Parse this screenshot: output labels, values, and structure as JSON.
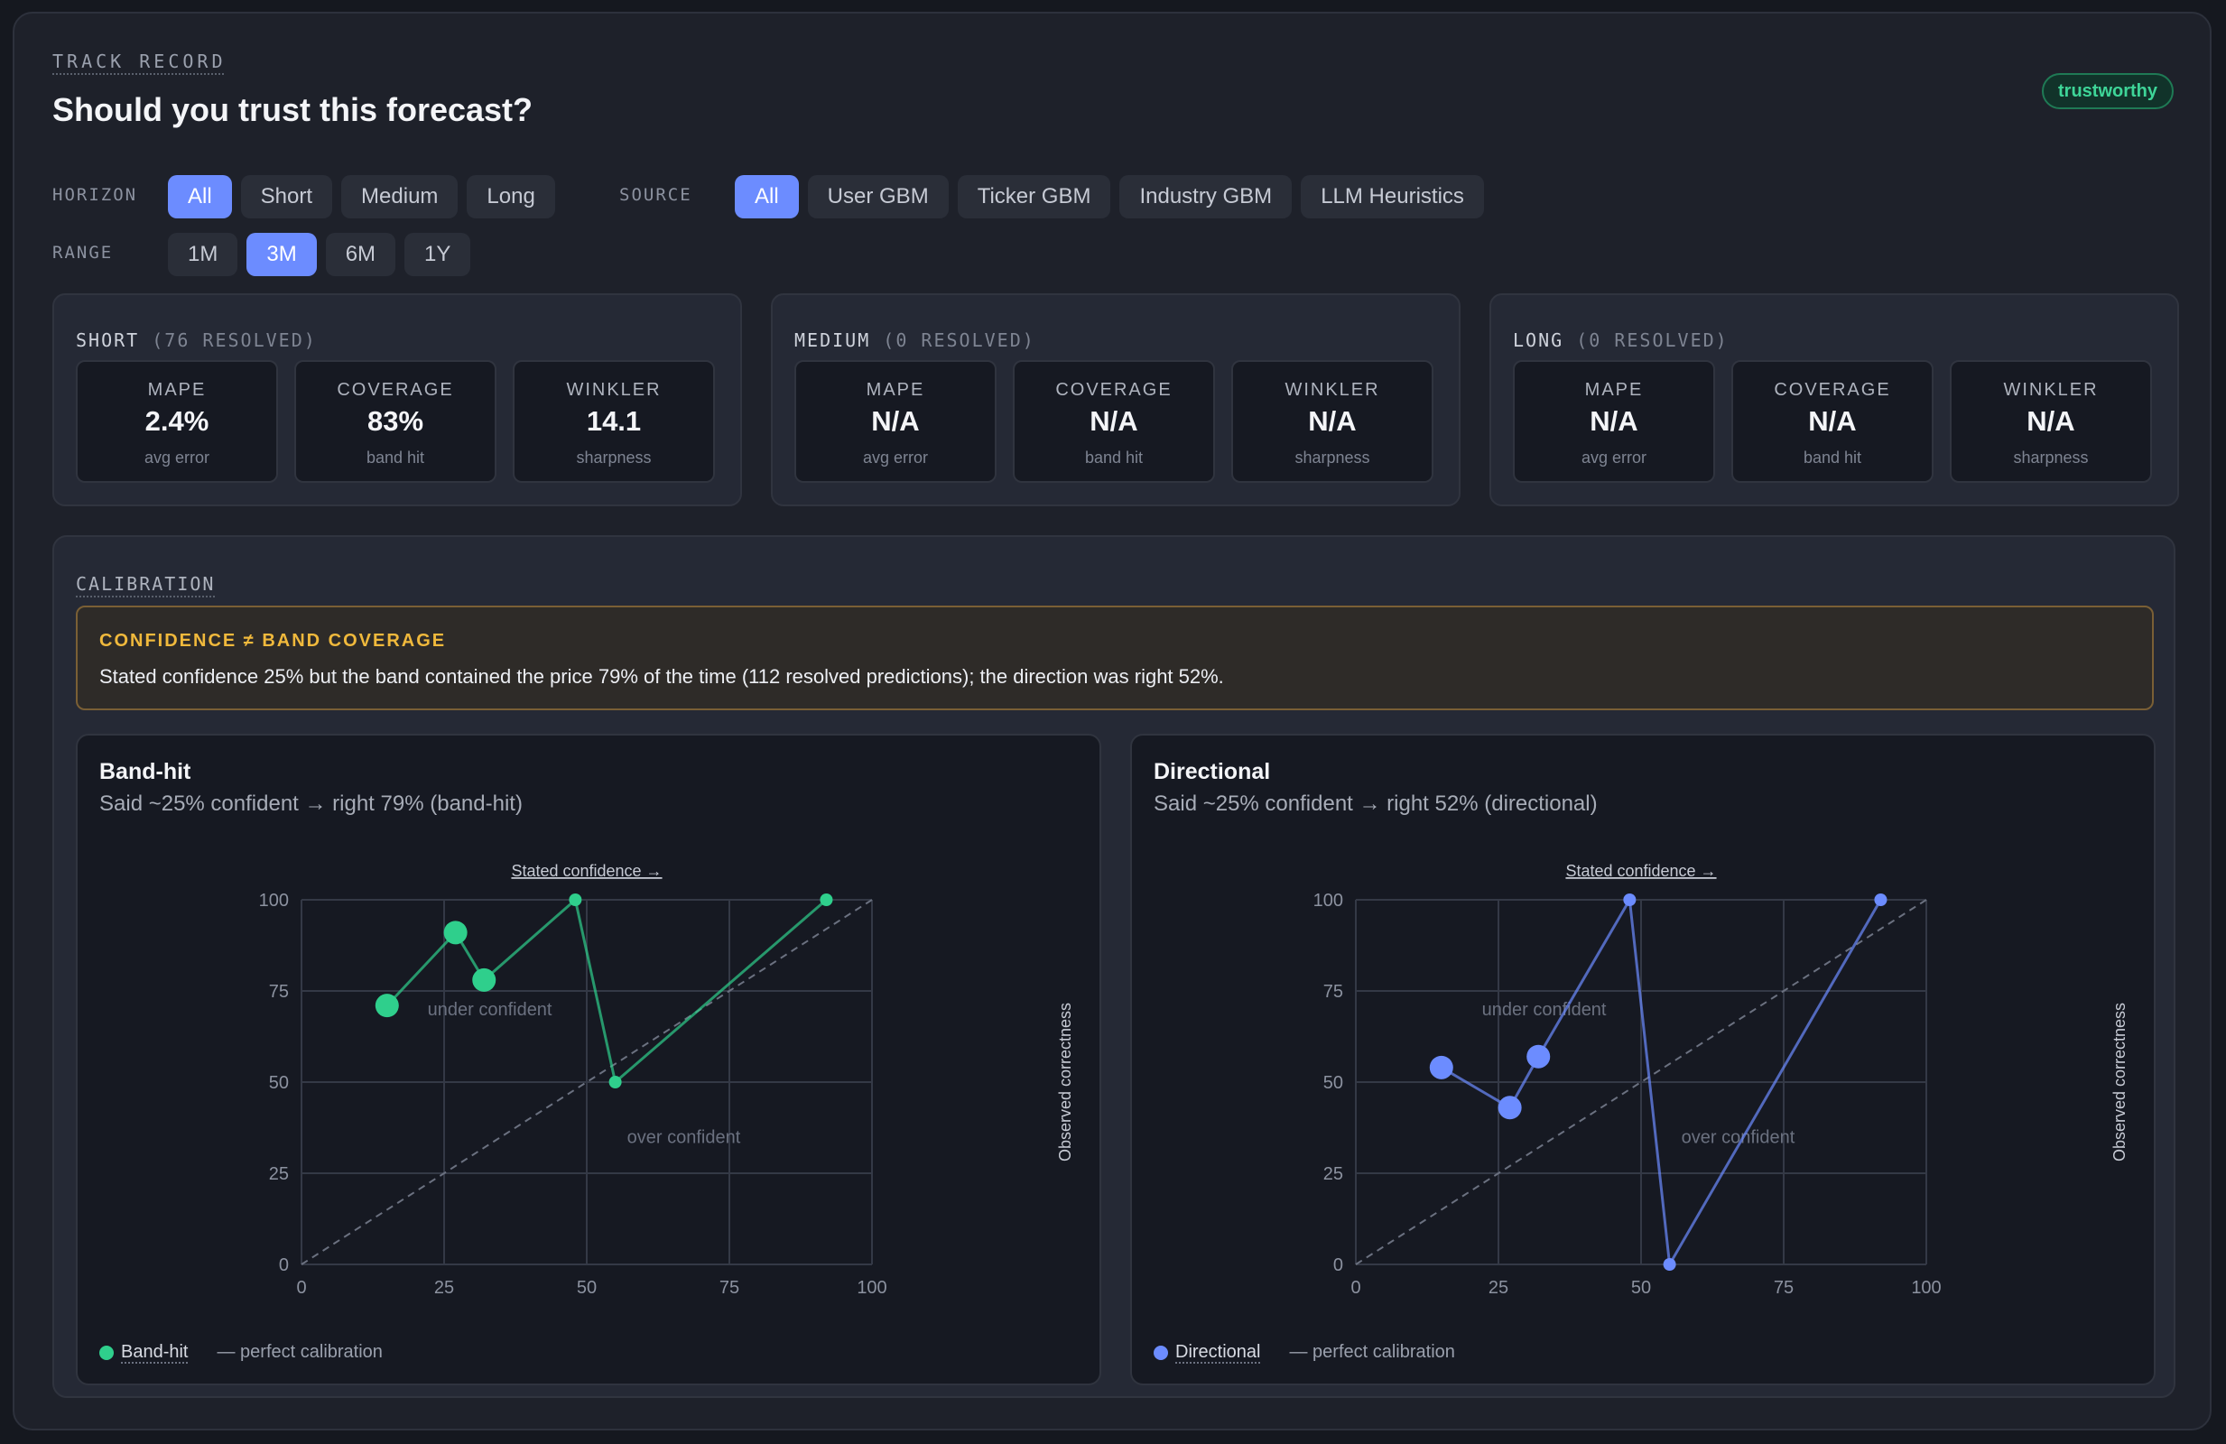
{
  "header": {
    "eyebrow": "TRACK RECORD",
    "title": "Should you trust this forecast?",
    "badge": "trustworthy"
  },
  "filters": {
    "horizon": {
      "label": "HORIZON",
      "options": [
        "All",
        "Short",
        "Medium",
        "Long"
      ],
      "selected": "All"
    },
    "source": {
      "label": "SOURCE",
      "options": [
        "All",
        "User GBM",
        "Ticker GBM",
        "Industry GBM",
        "LLM Heuristics"
      ],
      "selected": "All"
    },
    "range": {
      "label": "RANGE",
      "options": [
        "1M",
        "3M",
        "6M",
        "1Y"
      ],
      "selected": "3M"
    }
  },
  "horizons": [
    {
      "name": "SHORT",
      "resolved": "(76 RESOLVED)",
      "metrics": [
        {
          "label": "MAPE",
          "value": "2.4%",
          "note": "avg error"
        },
        {
          "label": "COVERAGE",
          "value": "83%",
          "note": "band hit"
        },
        {
          "label": "WINKLER",
          "value": "14.1",
          "note": "sharpness"
        }
      ]
    },
    {
      "name": "MEDIUM",
      "resolved": "(0 RESOLVED)",
      "metrics": [
        {
          "label": "MAPE",
          "value": "N/A",
          "note": "avg error"
        },
        {
          "label": "COVERAGE",
          "value": "N/A",
          "note": "band hit"
        },
        {
          "label": "WINKLER",
          "value": "N/A",
          "note": "sharpness"
        }
      ]
    },
    {
      "name": "LONG",
      "resolved": "(0 RESOLVED)",
      "metrics": [
        {
          "label": "MAPE",
          "value": "N/A",
          "note": "avg error"
        },
        {
          "label": "COVERAGE",
          "value": "N/A",
          "note": "band hit"
        },
        {
          "label": "WINKLER",
          "value": "N/A",
          "note": "sharpness"
        }
      ]
    }
  ],
  "calibration": {
    "title": "CALIBRATION",
    "warning": {
      "title": "CONFIDENCE ≠ BAND COVERAGE",
      "text": "Stated confidence 25% but the band contained the price 79% of the time (112 resolved predictions); the direction was right 52%."
    }
  },
  "chart_data": [
    {
      "type": "scatter",
      "title": "Band-hit",
      "subtitle": "Said ~25% confident → right 79% (band-hit)",
      "xlabel": "Stated confidence →",
      "ylabel": "Observed correctness",
      "xlim": [
        0,
        100
      ],
      "ylim": [
        0,
        100
      ],
      "ticks": [
        "0",
        "25",
        "50",
        "75",
        "100"
      ],
      "grid": true,
      "color": "#2fcf8c",
      "annotations": [
        "under confident",
        "over confident"
      ],
      "series": [
        {
          "name": "Band-hit",
          "points": [
            {
              "x": 15,
              "y": 71,
              "size": "large"
            },
            {
              "x": 27,
              "y": 91,
              "size": "large"
            },
            {
              "x": 32,
              "y": 78,
              "size": "large"
            },
            {
              "x": 48,
              "y": 100,
              "size": "small"
            },
            {
              "x": 55,
              "y": 50,
              "size": "small"
            },
            {
              "x": 92,
              "y": 100,
              "size": "small"
            }
          ]
        }
      ],
      "reference": "— perfect calibration",
      "legend": "bottom-left"
    },
    {
      "type": "scatter",
      "title": "Directional",
      "subtitle": "Said ~25% confident → right 52% (directional)",
      "xlabel": "Stated confidence →",
      "ylabel": "Observed correctness",
      "xlim": [
        0,
        100
      ],
      "ylim": [
        0,
        100
      ],
      "ticks": [
        "0",
        "25",
        "50",
        "75",
        "100"
      ],
      "grid": true,
      "color": "#6c8cff",
      "annotations": [
        "under confident",
        "over confident"
      ],
      "series": [
        {
          "name": "Directional",
          "points": [
            {
              "x": 15,
              "y": 54,
              "size": "large"
            },
            {
              "x": 27,
              "y": 43,
              "size": "large"
            },
            {
              "x": 32,
              "y": 57,
              "size": "large"
            },
            {
              "x": 48,
              "y": 100,
              "size": "small"
            },
            {
              "x": 55,
              "y": 0,
              "size": "small"
            },
            {
              "x": 92,
              "y": 100,
              "size": "small"
            }
          ]
        }
      ],
      "reference": "— perfect calibration",
      "legend": "bottom-left"
    }
  ]
}
